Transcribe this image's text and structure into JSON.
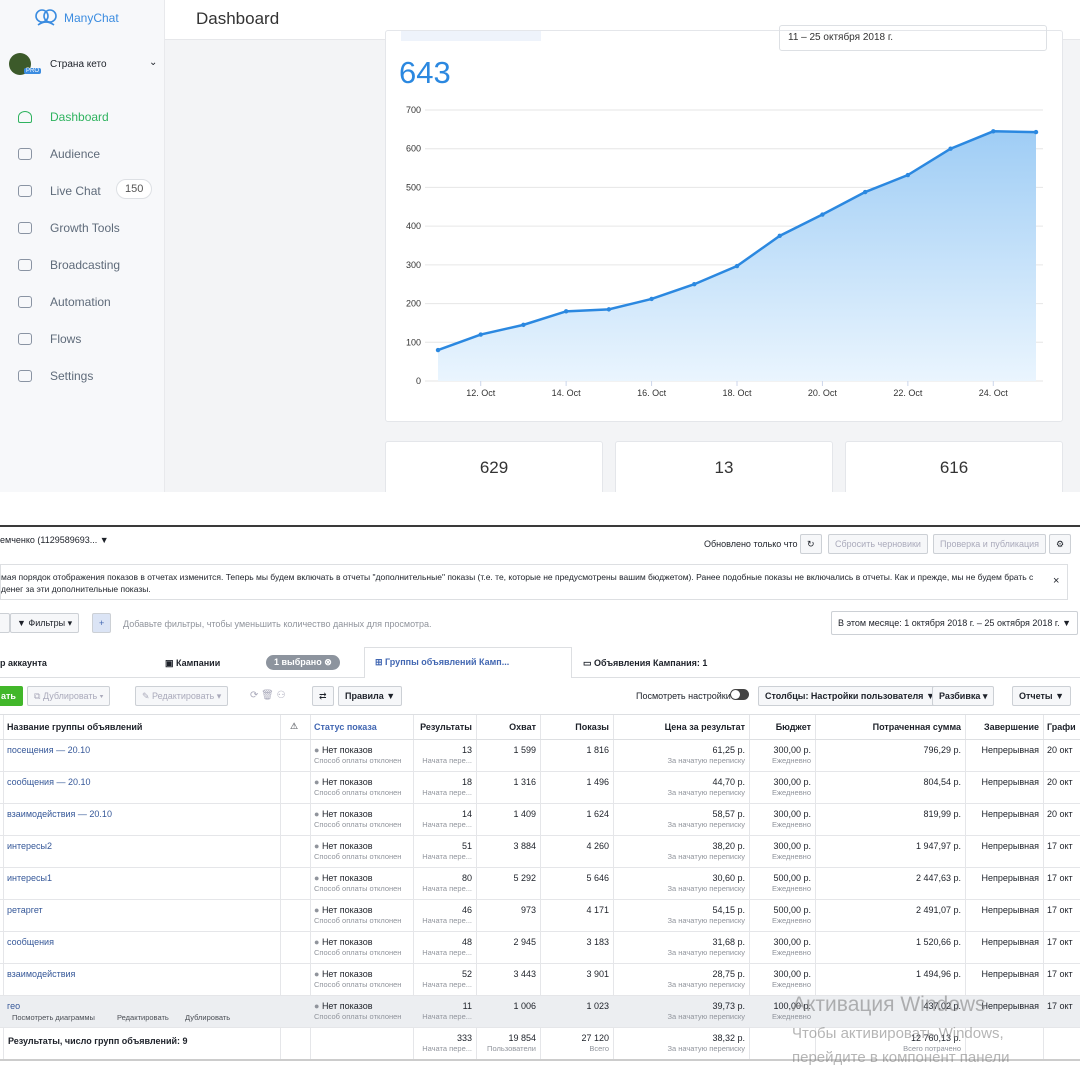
{
  "manychat": {
    "brand": "ManyChat",
    "header": "Dashboard",
    "page": "Страна кето",
    "pro": "PRO",
    "sidebar": [
      "Dashboard",
      "Audience",
      "Live Chat",
      "Growth Tools",
      "Broadcasting",
      "Automation",
      "Flows",
      "Settings"
    ],
    "live_chat_badge": "150",
    "date": "11 – 25 октября 2018 г.",
    "total": "643",
    "cards": [
      "629",
      "13",
      "616"
    ]
  },
  "chart_data": {
    "type": "line",
    "categories": [
      null,
      "12. Oct",
      null,
      "14. Oct",
      null,
      "16. Oct",
      null,
      "18. Oct",
      null,
      "20. Oct",
      null,
      "22. Oct",
      null,
      "24. Oct",
      null
    ],
    "values": [
      80,
      120,
      145,
      180,
      185,
      212,
      250,
      297,
      375,
      430,
      488,
      532,
      600,
      645,
      643
    ],
    "color": "#2b88e0",
    "ylim": [
      0,
      700
    ],
    "yticks": [
      0,
      100,
      200,
      300,
      400,
      500,
      600,
      700
    ],
    "grid": true
  },
  "ads": {
    "account": "емченко (1129589693...",
    "updated": "Обновлено только что",
    "reset": "Сбросить черновики",
    "publish": "Проверка и публикация",
    "notice": [
      "мая порядок отображения показов в отчетах изменится. Теперь мы будем включать в отчеты \"дополнительные\" показы (т.е. те, которые не предусмотрены вашим бюджетом). Ранее подобные показы не включались в отчеты. Как и прежде, мы не будем брать с",
      "денег за эти дополнительные показы."
    ],
    "filters": "Фильтры",
    "filter_hint": "Добавьте фильтры, чтобы уменьшить количество данных для просмотра.",
    "date_range": "В этом месяце: 1 октября 2018 г. – 25 октября 2018 г.",
    "tabs": [
      "р аккаунта",
      "Кампании",
      "Группы объявлений Камп...",
      "Объявления Кампания: 1"
    ],
    "selected": "1 выбрано",
    "toolbar": [
      "ать",
      "Дублировать",
      "Редактировать",
      "Правила"
    ],
    "view_settings": "Посмотреть настройки",
    "columns_btn": "Столбцы: Настройки пользователя",
    "breakdown": "Разбивка",
    "reports": "Отчеты",
    "row_actions": [
      "Посмотреть диаграммы",
      "Редактировать",
      "Дублировать"
    ],
    "table": {
      "columns": [
        "Название группы объявлений",
        "Статус показа",
        "Результаты",
        "Охват",
        "Показы",
        "Цена за результат",
        "Бюджет",
        "Потраченная сумма",
        "Завершение",
        "Графи"
      ],
      "rows": [
        {
          "name": "посещения — 20.10",
          "status": "Нет показов",
          "status_note": "Способ оплаты отклонен",
          "results": "13",
          "results_note": "Начата пере...",
          "reach": "1 599",
          "impressions": "1 816",
          "cost": "61,25 р.",
          "cost_note": "За начатую переписку",
          "budget": "300,00 р.",
          "budget_note": "Ежедневно",
          "spent": "796,29 р.",
          "end": "Непрерывная",
          "schedule": "20 окт"
        },
        {
          "name": "сообщения — 20.10",
          "status": "Нет показов",
          "status_note": "Способ оплаты отклонен",
          "results": "18",
          "results_note": "Начата пере...",
          "reach": "1 316",
          "impressions": "1 496",
          "cost": "44,70 р.",
          "cost_note": "За начатую переписку",
          "budget": "300,00 р.",
          "budget_note": "Ежедневно",
          "spent": "804,54 р.",
          "end": "Непрерывная",
          "schedule": "20 окт"
        },
        {
          "name": "взаимодействия — 20.10",
          "status": "Нет показов",
          "status_note": "Способ оплаты отклонен",
          "results": "14",
          "results_note": "Начата пере...",
          "reach": "1 409",
          "impressions": "1 624",
          "cost": "58,57 р.",
          "cost_note": "За начатую переписку",
          "budget": "300,00 р.",
          "budget_note": "Ежедневно",
          "spent": "819,99 р.",
          "end": "Непрерывная",
          "schedule": "20 окт"
        },
        {
          "name": "интересы2",
          "status": "Нет показов",
          "status_note": "Способ оплаты отклонен",
          "results": "51",
          "results_note": "Начата пере...",
          "reach": "3 884",
          "impressions": "4 260",
          "cost": "38,20 р.",
          "cost_note": "За начатую переписку",
          "budget": "300,00 р.",
          "budget_note": "Ежедневно",
          "spent": "1 947,97 р.",
          "end": "Непрерывная",
          "schedule": "17 окт"
        },
        {
          "name": "интересы1",
          "status": "Нет показов",
          "status_note": "Способ оплаты отклонен",
          "results": "80",
          "results_note": "Начата пере...",
          "reach": "5 292",
          "impressions": "5 646",
          "cost": "30,60 р.",
          "cost_note": "За начатую переписку",
          "budget": "500,00 р.",
          "budget_note": "Ежедневно",
          "spent": "2 447,63 р.",
          "end": "Непрерывная",
          "schedule": "17 окт"
        },
        {
          "name": "ретаргет",
          "status": "Нет показов",
          "status_note": "Способ оплаты отклонен",
          "results": "46",
          "results_note": "Начата пере...",
          "reach": "973",
          "impressions": "4 171",
          "cost": "54,15 р.",
          "cost_note": "За начатую переписку",
          "budget": "500,00 р.",
          "budget_note": "Ежедневно",
          "spent": "2 491,07 р.",
          "end": "Непрерывная",
          "schedule": "17 окт"
        },
        {
          "name": "сообщения",
          "status": "Нет показов",
          "status_note": "Способ оплаты отклонен",
          "results": "48",
          "results_note": "Начата пере...",
          "reach": "2 945",
          "impressions": "3 183",
          "cost": "31,68 р.",
          "cost_note": "За начатую переписку",
          "budget": "300,00 р.",
          "budget_note": "Ежедневно",
          "spent": "1 520,66 р.",
          "end": "Непрерывная",
          "schedule": "17 окт"
        },
        {
          "name": "взаимодействия",
          "status": "Нет показов",
          "status_note": "Способ оплаты отклонен",
          "results": "52",
          "results_note": "Начата пере...",
          "reach": "3 443",
          "impressions": "3 901",
          "cost": "28,75 р.",
          "cost_note": "За начатую переписку",
          "budget": "300,00 р.",
          "budget_note": "Ежедневно",
          "spent": "1 494,96 р.",
          "end": "Непрерывная",
          "schedule": "17 окт"
        },
        {
          "name": "гео",
          "status": "Нет показов",
          "status_note": "Способ оплаты отклонен",
          "results": "11",
          "results_note": "Начата пере...",
          "reach": "1 006",
          "impressions": "1 023",
          "cost": "39,73 р.",
          "cost_note": "За начатую переписку",
          "budget": "100,00 р.",
          "budget_note": "Ежедневно",
          "spent": "437,02 р.",
          "end": "Непрерывная",
          "schedule": "17 окт"
        }
      ],
      "total": {
        "label": "Результаты, число групп объявлений: 9",
        "results": "333",
        "results_note": "Начата пере...",
        "reach": "19 854",
        "reach_note": "Пользователи",
        "impressions": "27 120",
        "impressions_note": "Всего",
        "cost": "38,32 р.",
        "cost_note": "За начатую переписку",
        "spent": "12 760,13 р.",
        "spent_note": "Всего потрачено"
      }
    }
  },
  "watermark": [
    "Активация Windows",
    "Чтобы активировать Windows,",
    "перейдите в компонент панели"
  ]
}
